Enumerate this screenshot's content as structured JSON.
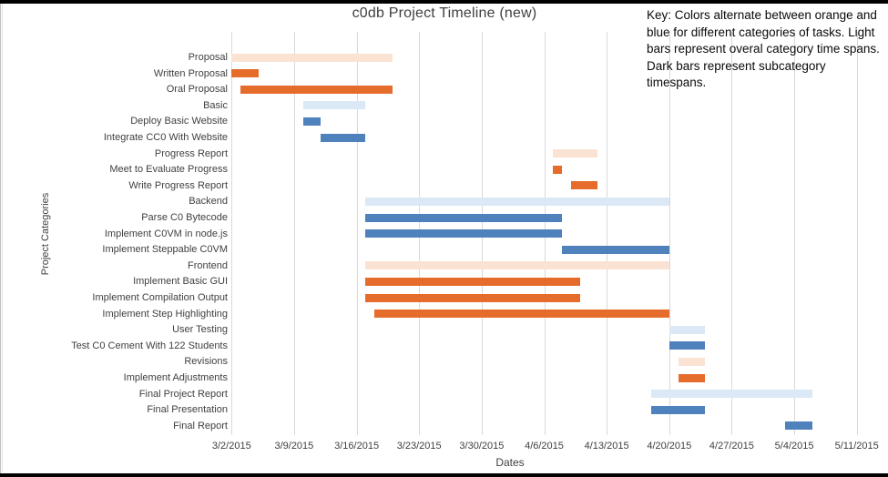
{
  "window": {
    "edge_color": "#000000",
    "background": "#ffffff"
  },
  "chart": {
    "title": "c0db Project Timeline (new)",
    "x_axis_title": "Dates",
    "y_axis_title": "Project Categories",
    "key_text": "Key: Colors alternate between orange and blue for different categories of tasks. Light bars represent overal category time spans. Dark bars represent subcategory timespans."
  },
  "chart_data": {
    "type": "bar",
    "subtype": "gantt",
    "title": "c0db Project Timeline (new)",
    "xlabel": "Dates",
    "ylabel": "Project Categories",
    "x_ticks": [
      "3/2/2015",
      "3/9/2015",
      "3/16/2015",
      "3/23/2015",
      "3/30/2015",
      "4/6/2015",
      "4/13/2015",
      "4/20/2015",
      "4/27/2015",
      "5/4/2015",
      "5/11/2015"
    ],
    "x_range": [
      "3/2/2015",
      "5/11/2015"
    ],
    "grid": "vertical-only",
    "legend_position": "top-right-text-key",
    "colors": {
      "orange_dark": "#E66C2C",
      "orange_light": "#FAE3D3",
      "blue_dark": "#4F81BD",
      "blue_light": "#DBE8F5",
      "gridline": "#D9D9D9",
      "text": "#3F3F3F"
    },
    "tasks": [
      {
        "label": "Proposal",
        "start": "3/2/2015",
        "end": "3/20/2015",
        "color": "orange",
        "shade": "light"
      },
      {
        "label": "Written Proposal",
        "start": "3/2/2015",
        "end": "3/5/2015",
        "color": "orange",
        "shade": "dark"
      },
      {
        "label": "Oral Proposal",
        "start": "3/3/2015",
        "end": "3/20/2015",
        "color": "orange",
        "shade": "dark"
      },
      {
        "label": "Basic",
        "start": "3/10/2015",
        "end": "3/17/2015",
        "color": "blue",
        "shade": "light"
      },
      {
        "label": "Deploy Basic Website",
        "start": "3/10/2015",
        "end": "3/12/2015",
        "color": "blue",
        "shade": "dark"
      },
      {
        "label": "Integrate CC0 With Website",
        "start": "3/12/2015",
        "end": "3/17/2015",
        "color": "blue",
        "shade": "dark"
      },
      {
        "label": "Progress Report",
        "start": "4/7/2015",
        "end": "4/12/2015",
        "color": "orange",
        "shade": "light"
      },
      {
        "label": "Meet to Evaluate Progress",
        "start": "4/7/2015",
        "end": "4/8/2015",
        "color": "orange",
        "shade": "dark"
      },
      {
        "label": "Write Progress Report",
        "start": "4/9/2015",
        "end": "4/12/2015",
        "color": "orange",
        "shade": "dark"
      },
      {
        "label": "Backend",
        "start": "3/17/2015",
        "end": "4/20/2015",
        "color": "blue",
        "shade": "light"
      },
      {
        "label": "Parse C0 Bytecode",
        "start": "3/17/2015",
        "end": "4/8/2015",
        "color": "blue",
        "shade": "dark"
      },
      {
        "label": "Implement C0VM in node.js",
        "start": "3/17/2015",
        "end": "4/8/2015",
        "color": "blue",
        "shade": "dark"
      },
      {
        "label": "Implement Steppable C0VM",
        "start": "4/8/2015",
        "end": "4/20/2015",
        "color": "blue",
        "shade": "dark"
      },
      {
        "label": "Frontend",
        "start": "3/17/2015",
        "end": "4/20/2015",
        "color": "orange",
        "shade": "light"
      },
      {
        "label": "Implement Basic GUI",
        "start": "3/17/2015",
        "end": "4/10/2015",
        "color": "orange",
        "shade": "dark"
      },
      {
        "label": "Implement Compilation Output",
        "start": "3/17/2015",
        "end": "4/10/2015",
        "color": "orange",
        "shade": "dark"
      },
      {
        "label": "Implement Step Highlighting",
        "start": "3/18/2015",
        "end": "4/20/2015",
        "color": "orange",
        "shade": "dark"
      },
      {
        "label": "User Testing",
        "start": "4/20/2015",
        "end": "4/24/2015",
        "color": "blue",
        "shade": "light"
      },
      {
        "label": "Test C0 Cement With 122 Students",
        "start": "4/20/2015",
        "end": "4/24/2015",
        "color": "blue",
        "shade": "dark"
      },
      {
        "label": "Revisions",
        "start": "4/21/2015",
        "end": "4/24/2015",
        "color": "orange",
        "shade": "light"
      },
      {
        "label": "Implement Adjustments",
        "start": "4/21/2015",
        "end": "4/24/2015",
        "color": "orange",
        "shade": "dark"
      },
      {
        "label": "Final Project Report",
        "start": "4/18/2015",
        "end": "5/6/2015",
        "color": "blue",
        "shade": "light"
      },
      {
        "label": "Final Presentation",
        "start": "4/18/2015",
        "end": "4/24/2015",
        "color": "blue",
        "shade": "dark"
      },
      {
        "label": "Final Report",
        "start": "5/3/2015",
        "end": "5/6/2015",
        "color": "blue",
        "shade": "dark"
      }
    ]
  }
}
